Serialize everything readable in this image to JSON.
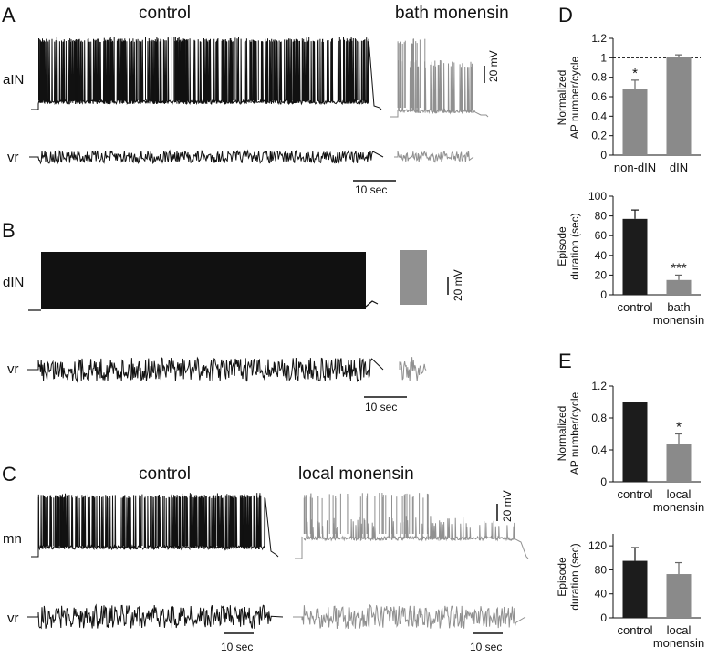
{
  "colors": {
    "control": "#111111",
    "treated": "#909090",
    "bar_dark": "#1c1c1c",
    "bar_gray": "#8a8a8a"
  },
  "panels": {
    "A": {
      "letter": "A",
      "cond1": "control",
      "cond2": "bath monensin",
      "cell": "aIN",
      "vr": "vr",
      "scale_v": "20 mV",
      "scale_t": "10 sec"
    },
    "B": {
      "letter": "B",
      "cell": "dIN",
      "vr": "vr",
      "scale_v": "20 mV",
      "scale_t": "10 sec"
    },
    "C": {
      "letter": "C",
      "cond1": "control",
      "cond2": "local monensin",
      "cell": "mn",
      "vr": "vr",
      "scale_v": "20 mV",
      "scale_t1": "10 sec",
      "scale_t2": "10 sec"
    },
    "D": {
      "letter": "D"
    },
    "E": {
      "letter": "E"
    }
  },
  "chart_data": [
    {
      "id": "D1",
      "type": "bar",
      "categories": [
        "non-dIN",
        "dIN"
      ],
      "values": [
        0.68,
        1.01
      ],
      "errors": [
        0.09,
        0.02
      ],
      "ylabel": "Normalized AP number/cycle",
      "ylim": [
        0,
        1.2
      ],
      "yticks": [
        "0",
        "0.2",
        "0.4",
        "0.6",
        "0.8",
        "1",
        "1.2"
      ],
      "ytick_values": [
        0,
        0.2,
        0.4,
        0.6,
        0.8,
        1,
        1.2
      ],
      "ref_line": 1,
      "bar_colors": [
        "gray",
        "gray"
      ],
      "significance": [
        "*",
        ""
      ]
    },
    {
      "id": "D2",
      "type": "bar",
      "categories": [
        "control",
        "bath\nmonensin"
      ],
      "values": [
        77,
        15
      ],
      "errors": [
        9,
        5
      ],
      "ylabel": "Episode duration (sec)",
      "ylim": [
        0,
        100
      ],
      "yticks": [
        "0",
        "20",
        "40",
        "60",
        "80",
        "100"
      ],
      "ytick_values": [
        0,
        20,
        40,
        60,
        80,
        100
      ],
      "bar_colors": [
        "dark",
        "gray"
      ],
      "significance": [
        "",
        "***"
      ]
    },
    {
      "id": "E1",
      "type": "bar",
      "categories": [
        "control",
        "local\nmonensin"
      ],
      "values": [
        1.0,
        0.47
      ],
      "errors": [
        0,
        0.13
      ],
      "ylabel": "Normalized AP number/cycle",
      "ylim": [
        0,
        1.2
      ],
      "yticks": [
        "0",
        "0.4",
        "0.8",
        "1.2"
      ],
      "ytick_values": [
        0,
        0.4,
        0.8,
        1.2
      ],
      "bar_colors": [
        "dark",
        "gray"
      ],
      "significance": [
        "",
        "*"
      ]
    },
    {
      "id": "E2",
      "type": "bar",
      "categories": [
        "control",
        "local\nmonensin"
      ],
      "values": [
        95,
        73
      ],
      "errors": [
        22,
        19
      ],
      "ylabel": "Episode duration (sec)",
      "ylim": [
        0,
        140
      ],
      "yticks": [
        "0",
        "40",
        "80",
        "120"
      ],
      "ytick_values": [
        0,
        40,
        80,
        120
      ],
      "bar_colors": [
        "dark",
        "gray"
      ],
      "significance": [
        "",
        ""
      ]
    }
  ]
}
